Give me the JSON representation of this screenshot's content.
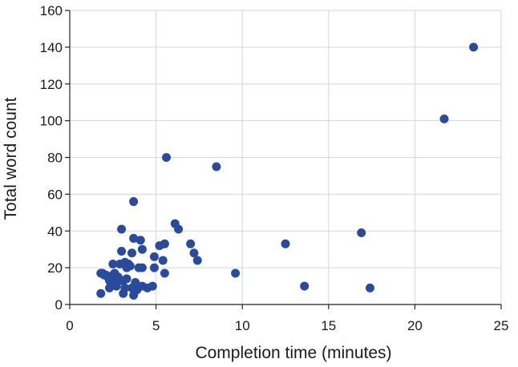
{
  "chart_data": {
    "type": "scatter",
    "title": "",
    "xlabel": "Completion time (minutes)",
    "ylabel": "Total word count",
    "xlim": [
      0,
      25
    ],
    "ylim": [
      0,
      160
    ],
    "xticks": [
      0,
      5,
      10,
      15,
      20,
      25
    ],
    "yticks": [
      0,
      20,
      40,
      60,
      80,
      100,
      120,
      140,
      160
    ],
    "xtick_labels": [
      "0",
      "5",
      "10",
      "15",
      "20",
      "25"
    ],
    "ytick_labels": [
      "0",
      "20",
      "40",
      "60",
      "80",
      "100",
      "120",
      "140",
      "160"
    ],
    "grid": true,
    "legend": "none",
    "marker_color": "#2a4a9c",
    "points": [
      [
        1.8,
        6
      ],
      [
        1.8,
        17
      ],
      [
        1.9,
        17
      ],
      [
        2.0,
        16
      ],
      [
        2.1,
        16
      ],
      [
        2.2,
        15
      ],
      [
        2.3,
        13
      ],
      [
        2.3,
        9
      ],
      [
        2.4,
        14
      ],
      [
        2.4,
        11
      ],
      [
        2.5,
        22
      ],
      [
        2.5,
        16
      ],
      [
        2.6,
        17
      ],
      [
        2.6,
        12
      ],
      [
        2.7,
        10
      ],
      [
        2.8,
        15
      ],
      [
        2.9,
        13
      ],
      [
        2.9,
        22
      ],
      [
        3.0,
        41
      ],
      [
        3.0,
        29
      ],
      [
        3.1,
        13
      ],
      [
        3.1,
        6
      ],
      [
        3.2,
        23
      ],
      [
        3.2,
        9
      ],
      [
        3.3,
        14
      ],
      [
        3.3,
        20
      ],
      [
        3.4,
        22
      ],
      [
        3.5,
        21
      ],
      [
        3.6,
        28
      ],
      [
        3.6,
        9
      ],
      [
        3.7,
        36
      ],
      [
        3.7,
        56
      ],
      [
        3.7,
        5
      ],
      [
        3.8,
        12
      ],
      [
        3.9,
        8
      ],
      [
        4.0,
        20
      ],
      [
        4.1,
        35
      ],
      [
        4.2,
        30
      ],
      [
        4.2,
        20
      ],
      [
        4.2,
        10
      ],
      [
        4.5,
        9
      ],
      [
        4.8,
        10
      ],
      [
        4.9,
        20
      ],
      [
        4.9,
        26
      ],
      [
        5.2,
        32
      ],
      [
        5.4,
        24
      ],
      [
        5.5,
        33
      ],
      [
        5.5,
        17
      ],
      [
        5.6,
        80
      ],
      [
        6.1,
        44
      ],
      [
        6.3,
        41
      ],
      [
        7.0,
        33
      ],
      [
        7.2,
        28
      ],
      [
        7.4,
        24
      ],
      [
        8.5,
        75
      ],
      [
        9.6,
        17
      ],
      [
        12.5,
        33
      ],
      [
        13.6,
        10
      ],
      [
        16.9,
        39
      ],
      [
        17.4,
        9
      ],
      [
        21.7,
        101
      ],
      [
        23.4,
        140
      ]
    ]
  }
}
